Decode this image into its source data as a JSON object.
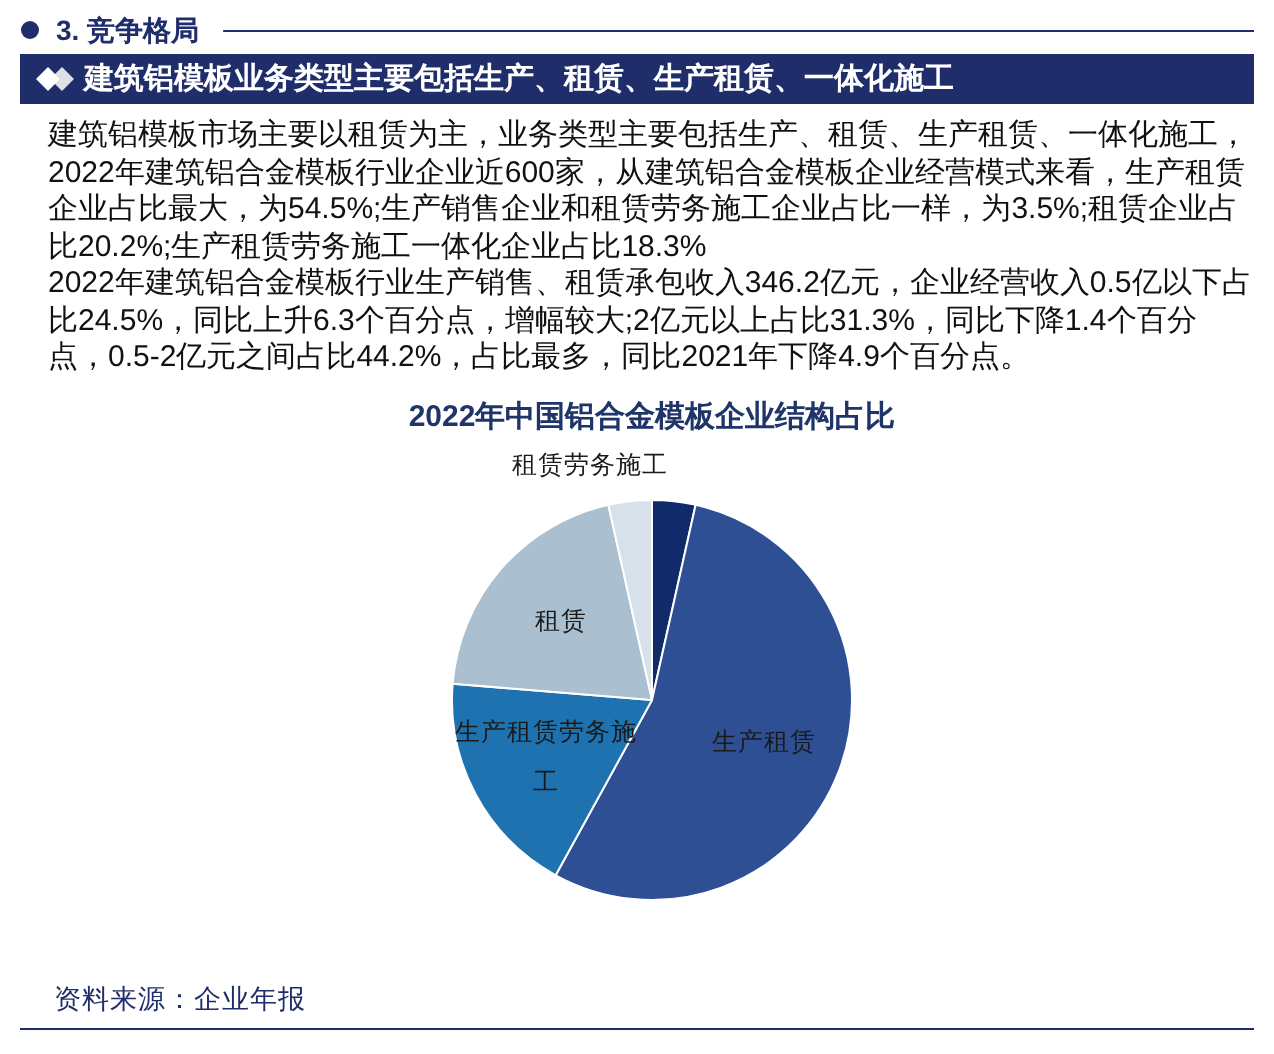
{
  "chart_data": {
    "type": "pie",
    "title": "2022年中国铝合金模板企业结构占比",
    "categories": [
      null,
      "生产租赁",
      "生产租赁劳务施工",
      "租赁",
      "租赁劳务施工"
    ],
    "values": [
      3.5,
      54.5,
      18.3,
      20.2,
      3.5
    ],
    "colors": [
      "#102a6a",
      "#2f4f95",
      "#1f72b0",
      "#aabfcf",
      "#d6e1ea"
    ],
    "annotations": [
      "3. 竞争格局",
      "建筑铝模板业务类型主要包括生产、租赁、生产租赁、一体化施工",
      "建筑铝模板市场主要以租赁为主，业务类型主要包括生产、租赁、生产租赁、一体化施工，2022年建筑铝合金模板行业企业近600家，从建筑铝合金模板企业经营模式来看，生产租赁企业占比最大，为54.5%;生产销售企业和租赁劳务施工企业占比一样，为3.5%;租赁企业占比20.2%;生产租赁劳务施工一体化企业占比18.3%",
      "2022年建筑铝合金模板行业生产销售、租赁承包收入346.2亿元，企业经营收入0.5亿以下占比24.5%，同比上升6.3个百分点，增幅较大;2亿元以上占比31.3%，同比下降1.4个百分点，0.5-2亿元之间占比44.2%，占比最多，同比2021年下降4.9个百分点。",
      "资料来源：企业年报"
    ]
  }
}
